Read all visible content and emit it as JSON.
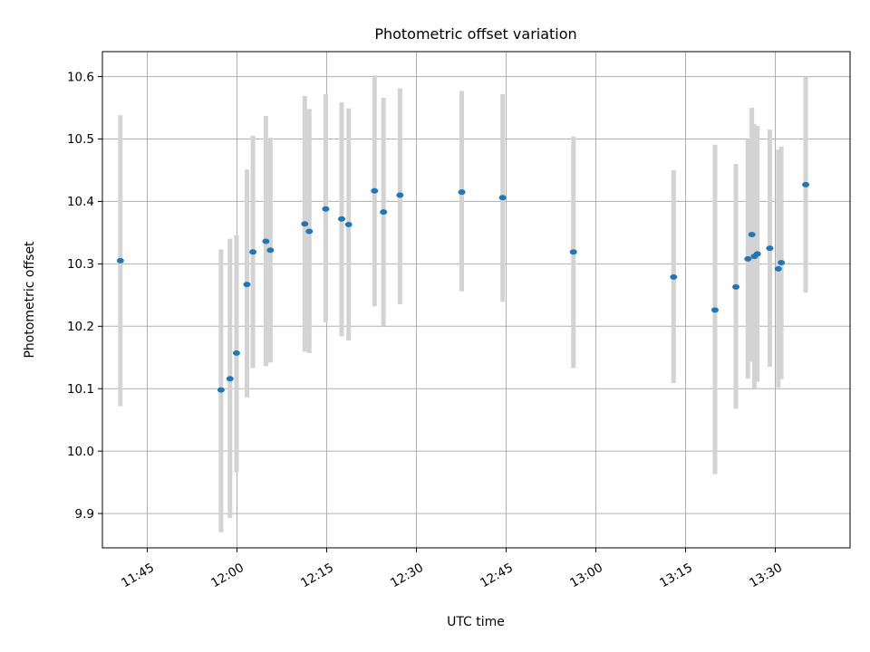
{
  "chart_data": {
    "type": "scatter",
    "title": "Photometric offset variation",
    "xlabel": "UTC time",
    "ylabel": "Photometric offset",
    "grid": true,
    "xlim": [
      "11:37:30",
      "13:42:30"
    ],
    "ylim": [
      9.845,
      10.64
    ],
    "x_ticks": [
      "11:45",
      "12:00",
      "12:15",
      "12:30",
      "12:45",
      "13:00",
      "13:15",
      "13:30"
    ],
    "y_ticks": [
      "9.9",
      "10.0",
      "10.1",
      "10.2",
      "10.3",
      "10.4",
      "10.5",
      "10.6"
    ],
    "colors": {
      "point": "#1f77b4",
      "error_bar": "#d3d3d3",
      "grid": "#b0b0b0"
    },
    "series": [
      {
        "points": [
          {
            "time": "11:40:30",
            "y": 10.305,
            "err_low": 10.072,
            "err_high": 10.538
          },
          {
            "time": "11:57:20",
            "y": 10.098,
            "err_low": 9.87,
            "err_high": 10.323
          },
          {
            "time": "11:58:50",
            "y": 10.116,
            "err_low": 9.893,
            "err_high": 10.34
          },
          {
            "time": "11:59:55",
            "y": 10.157,
            "err_low": 9.966,
            "err_high": 10.346
          },
          {
            "time": "12:01:40",
            "y": 10.267,
            "err_low": 10.086,
            "err_high": 10.451
          },
          {
            "time": "12:02:40",
            "y": 10.319,
            "err_low": 10.133,
            "err_high": 10.505
          },
          {
            "time": "12:04:50",
            "y": 10.336,
            "err_low": 10.136,
            "err_high": 10.537
          },
          {
            "time": "12:05:35",
            "y": 10.322,
            "err_low": 10.142,
            "err_high": 10.502
          },
          {
            "time": "12:11:20",
            "y": 10.364,
            "err_low": 10.159,
            "err_high": 10.569
          },
          {
            "time": "12:12:05",
            "y": 10.352,
            "err_low": 10.157,
            "err_high": 10.548
          },
          {
            "time": "12:14:50",
            "y": 10.388,
            "err_low": 10.206,
            "err_high": 10.572
          },
          {
            "time": "12:17:30",
            "y": 10.372,
            "err_low": 10.184,
            "err_high": 10.559
          },
          {
            "time": "12:18:40",
            "y": 10.363,
            "err_low": 10.177,
            "err_high": 10.549
          },
          {
            "time": "12:23:00",
            "y": 10.417,
            "err_low": 10.232,
            "err_high": 10.602
          },
          {
            "time": "12:24:30",
            "y": 10.383,
            "err_low": 10.2,
            "err_high": 10.566
          },
          {
            "time": "12:27:15",
            "y": 10.41,
            "err_low": 10.235,
            "err_high": 10.581
          },
          {
            "time": "12:37:35",
            "y": 10.415,
            "err_low": 10.256,
            "err_high": 10.577
          },
          {
            "time": "12:44:25",
            "y": 10.406,
            "err_low": 10.239,
            "err_high": 10.572
          },
          {
            "time": "12:56:15",
            "y": 10.319,
            "err_low": 10.133,
            "err_high": 10.504
          },
          {
            "time": "13:13:00",
            "y": 10.279,
            "err_low": 10.109,
            "err_high": 10.45
          },
          {
            "time": "13:19:55",
            "y": 10.226,
            "err_low": 9.963,
            "err_high": 10.491
          },
          {
            "time": "13:23:25",
            "y": 10.263,
            "err_low": 10.068,
            "err_high": 10.46
          },
          {
            "time": "13:25:25",
            "y": 10.308,
            "err_low": 10.116,
            "err_high": 10.5
          },
          {
            "time": "13:26:05",
            "y": 10.347,
            "err_low": 10.143,
            "err_high": 10.55
          },
          {
            "time": "13:26:30",
            "y": 10.312,
            "err_low": 10.101,
            "err_high": 10.524
          },
          {
            "time": "13:27:00",
            "y": 10.316,
            "err_low": 10.111,
            "err_high": 10.521
          },
          {
            "time": "13:29:05",
            "y": 10.325,
            "err_low": 10.135,
            "err_high": 10.515
          },
          {
            "time": "13:30:30",
            "y": 10.292,
            "err_low": 10.102,
            "err_high": 10.483
          },
          {
            "time": "13:31:00",
            "y": 10.302,
            "err_low": 10.115,
            "err_high": 10.488
          },
          {
            "time": "13:35:05",
            "y": 10.427,
            "err_low": 10.254,
            "err_high": 10.6
          }
        ]
      }
    ]
  }
}
